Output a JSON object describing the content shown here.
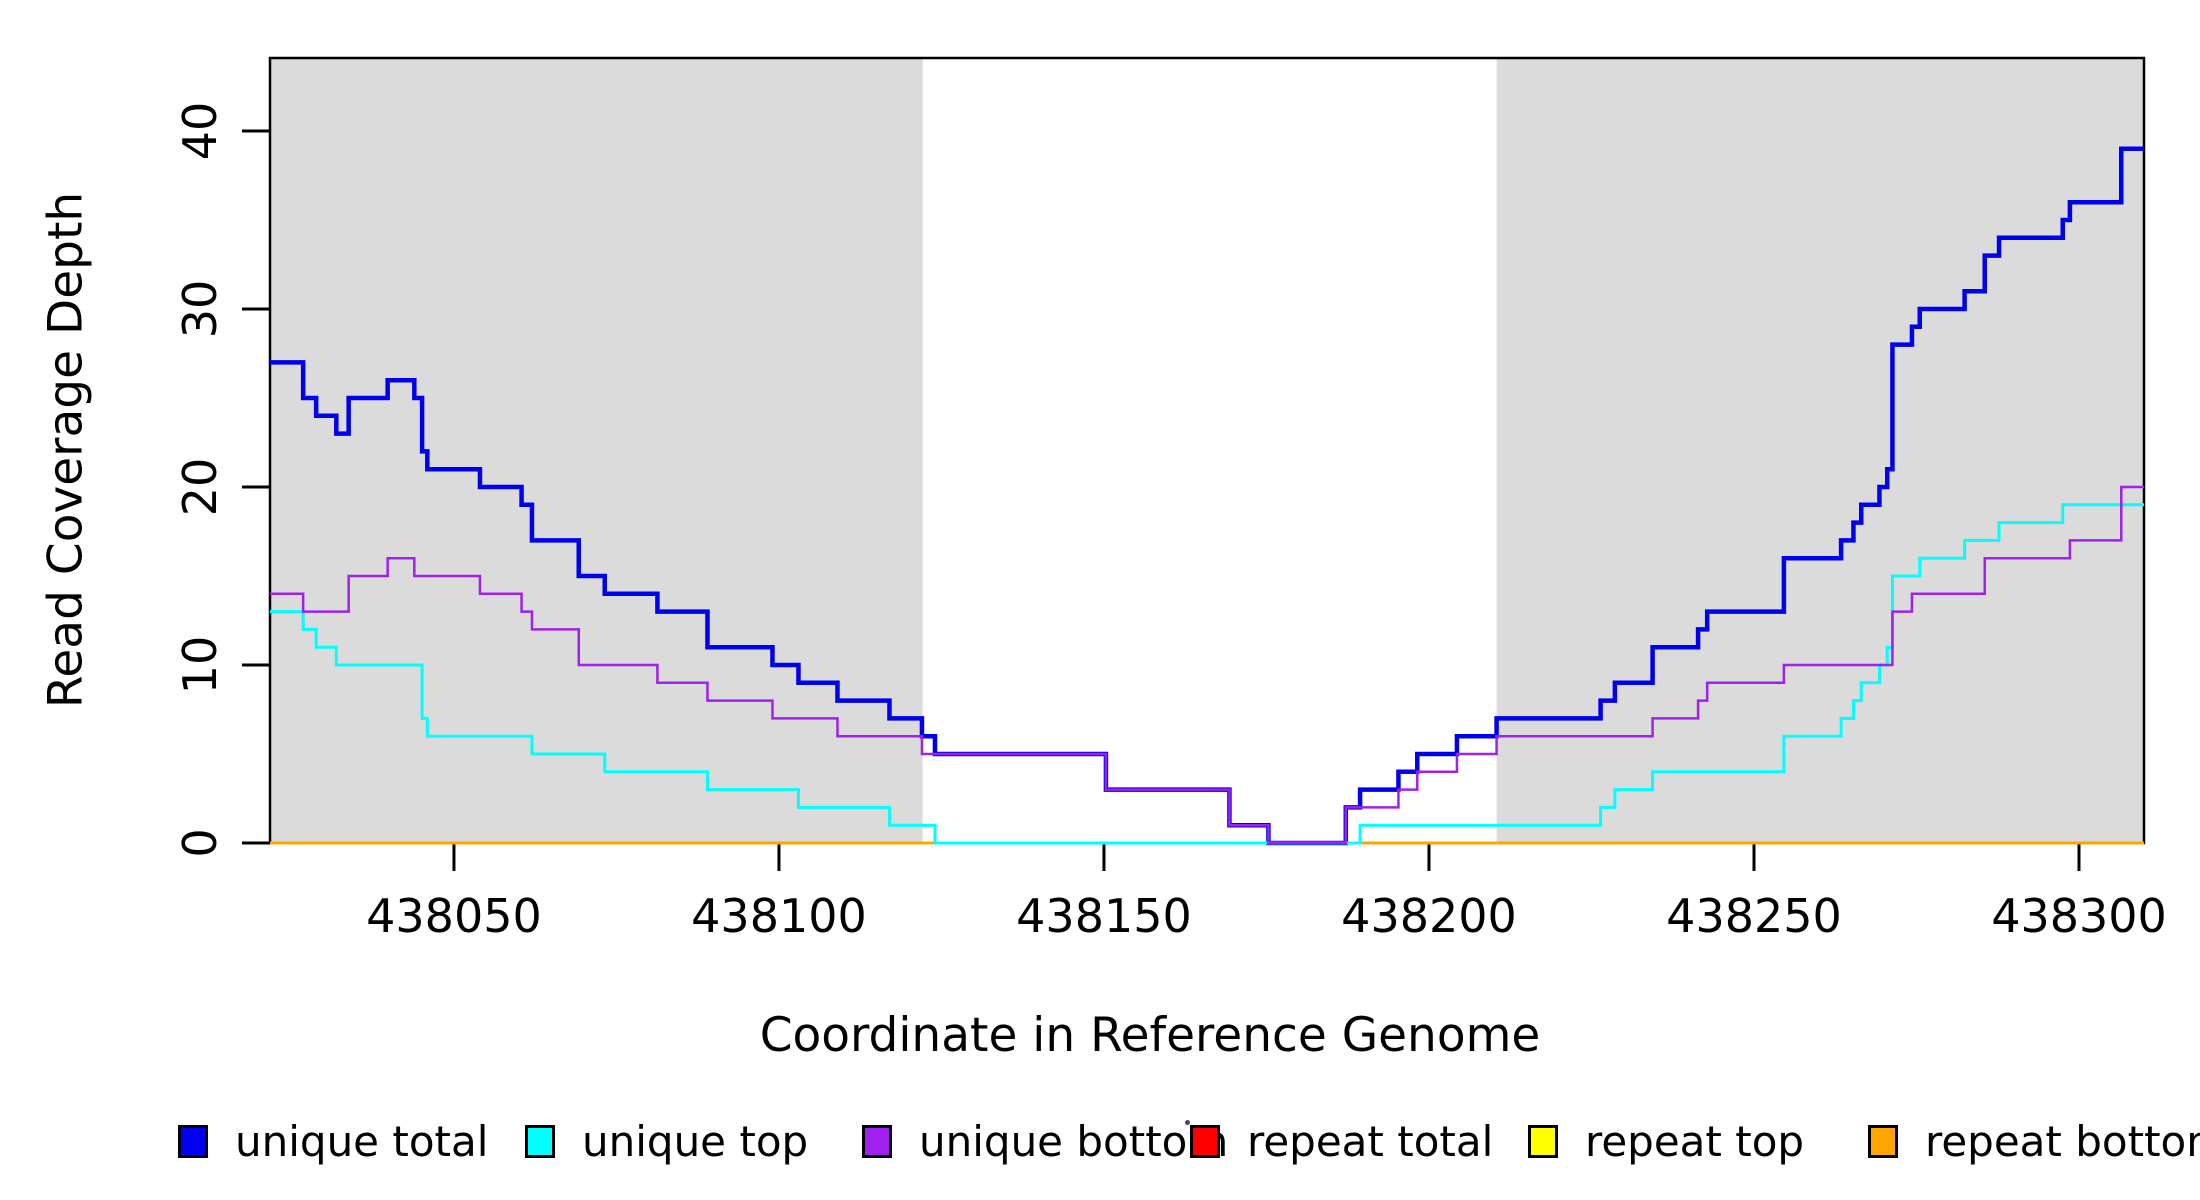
{
  "figure": {
    "xlabel": "Coordinate in Reference Genome",
    "ylabel": "Read Coverage Depth"
  },
  "legend": {
    "items": [
      {
        "label": "unique total",
        "color": "#0000EE"
      },
      {
        "label": "unique top",
        "color": "#00FFFF"
      },
      {
        "label": "unique bottom",
        "color": "#A020F0"
      },
      {
        "label": "repeat total",
        "color": "#FF0000"
      },
      {
        "label": "repeat top",
        "color": "#FFFF00"
      },
      {
        "label": "repeat bottom",
        "color": "#FFA500"
      }
    ]
  },
  "chart_data": {
    "type": "line",
    "subtype": "step",
    "title": "",
    "xlabel": "Coordinate in Reference Genome",
    "ylabel": "Read Coverage Depth",
    "xlim": [
      438021.7,
      438310
    ],
    "ylim": [
      0,
      44.1
    ],
    "x_ticks": [
      438050,
      438100,
      438150,
      438200,
      438250,
      438300
    ],
    "y_ticks": [
      0,
      10,
      20,
      30,
      40
    ],
    "grid": false,
    "legend_position": "bottom",
    "background_color": "#ffffff",
    "shaded_band_color": "#DBDBDB",
    "background_bands": [
      {
        "from": 438021.7,
        "to": 438122.1
      },
      {
        "from": 438210.4,
        "to": 438310.0
      }
    ],
    "draw_order": [
      "repeat total",
      "repeat top",
      "repeat bottom",
      "unique total",
      "unique top",
      "unique bottom"
    ],
    "series": [
      {
        "name": "unique total",
        "color": "#0000EE",
        "width": 4.5,
        "points": [
          [
            438021.7,
            27
          ],
          [
            438026.8,
            25
          ],
          [
            438028.8,
            24
          ],
          [
            438031.9,
            23
          ],
          [
            438033.8,
            25
          ],
          [
            438039.8,
            26
          ],
          [
            438043.9,
            25
          ],
          [
            438045.1,
            22
          ],
          [
            438045.9,
            21
          ],
          [
            438054.0,
            20
          ],
          [
            438060.4,
            19
          ],
          [
            438062.0,
            17
          ],
          [
            438069.2,
            15
          ],
          [
            438073.2,
            14
          ],
          [
            438081.3,
            13
          ],
          [
            438089.0,
            11
          ],
          [
            438099.0,
            10
          ],
          [
            438103.0,
            9
          ],
          [
            438109.0,
            8
          ],
          [
            438117.0,
            7
          ],
          [
            438122.0,
            6
          ],
          [
            438124.0,
            5
          ],
          [
            438150.3,
            3
          ],
          [
            438169.3,
            1
          ],
          [
            438175.3,
            0
          ],
          [
            438187.2,
            2
          ],
          [
            438189.4,
            3
          ],
          [
            438195.3,
            4
          ],
          [
            438198.2,
            5
          ],
          [
            438204.3,
            6
          ],
          [
            438210.4,
            7
          ],
          [
            438226.4,
            8
          ],
          [
            438228.6,
            9
          ],
          [
            438234.4,
            11
          ],
          [
            438241.4,
            12
          ],
          [
            438242.8,
            13
          ],
          [
            438254.6,
            16
          ],
          [
            438263.4,
            17
          ],
          [
            438265.3,
            18
          ],
          [
            438266.5,
            19
          ],
          [
            438269.3,
            20
          ],
          [
            438270.5,
            21
          ],
          [
            438271.3,
            28
          ],
          [
            438274.3,
            29
          ],
          [
            438275.5,
            30
          ],
          [
            438282.4,
            31
          ],
          [
            438285.5,
            33
          ],
          [
            438287.7,
            34
          ],
          [
            438297.5,
            35
          ],
          [
            438298.6,
            36
          ],
          [
            438306.5,
            39
          ]
        ]
      },
      {
        "name": "unique top",
        "color": "#00FFFF",
        "width": 3,
        "points": [
          [
            438021.7,
            13
          ],
          [
            438026.8,
            12
          ],
          [
            438028.8,
            11
          ],
          [
            438031.9,
            10
          ],
          [
            438045.1,
            7
          ],
          [
            438045.9,
            6
          ],
          [
            438062.0,
            5
          ],
          [
            438073.2,
            4
          ],
          [
            438089.0,
            3
          ],
          [
            438103.0,
            2
          ],
          [
            438117.0,
            1
          ],
          [
            438124.0,
            0
          ],
          [
            438189.4,
            1
          ],
          [
            438226.4,
            2
          ],
          [
            438228.6,
            3
          ],
          [
            438234.4,
            4
          ],
          [
            438254.6,
            6
          ],
          [
            438263.4,
            7
          ],
          [
            438265.3,
            8
          ],
          [
            438266.5,
            9
          ],
          [
            438269.3,
            10
          ],
          [
            438270.5,
            11
          ],
          [
            438271.3,
            15
          ],
          [
            438275.5,
            16
          ],
          [
            438282.4,
            17
          ],
          [
            438287.7,
            18
          ],
          [
            438297.5,
            19
          ]
        ]
      },
      {
        "name": "unique bottom",
        "color": "#A020F0",
        "width": 2.5,
        "points": [
          [
            438021.7,
            14
          ],
          [
            438026.8,
            13
          ],
          [
            438033.8,
            15
          ],
          [
            438039.8,
            16
          ],
          [
            438043.9,
            15
          ],
          [
            438054.0,
            14
          ],
          [
            438060.4,
            13
          ],
          [
            438062.0,
            12
          ],
          [
            438069.2,
            10
          ],
          [
            438081.3,
            9
          ],
          [
            438089.0,
            8
          ],
          [
            438099.0,
            7
          ],
          [
            438109.0,
            6
          ],
          [
            438122.0,
            5
          ],
          [
            438150.3,
            3
          ],
          [
            438169.3,
            1
          ],
          [
            438175.3,
            0
          ],
          [
            438187.2,
            2
          ],
          [
            438195.3,
            3
          ],
          [
            438198.2,
            4
          ],
          [
            438204.3,
            5
          ],
          [
            438210.4,
            6
          ],
          [
            438234.4,
            7
          ],
          [
            438241.4,
            8
          ],
          [
            438242.8,
            9
          ],
          [
            438254.6,
            10
          ],
          [
            438271.3,
            13
          ],
          [
            438274.3,
            14
          ],
          [
            438285.5,
            16
          ],
          [
            438298.6,
            17
          ],
          [
            438306.5,
            20
          ]
        ]
      },
      {
        "name": "repeat total",
        "color": "#FF0000",
        "width": 2.5,
        "points": [
          [
            438021.7,
            0
          ]
        ]
      },
      {
        "name": "repeat top",
        "color": "#FFFF00",
        "width": 2.5,
        "points": [
          [
            438021.7,
            0
          ]
        ]
      },
      {
        "name": "repeat bottom",
        "color": "#FFA500",
        "width": 3,
        "points": [
          [
            438021.7,
            0
          ]
        ]
      }
    ]
  }
}
